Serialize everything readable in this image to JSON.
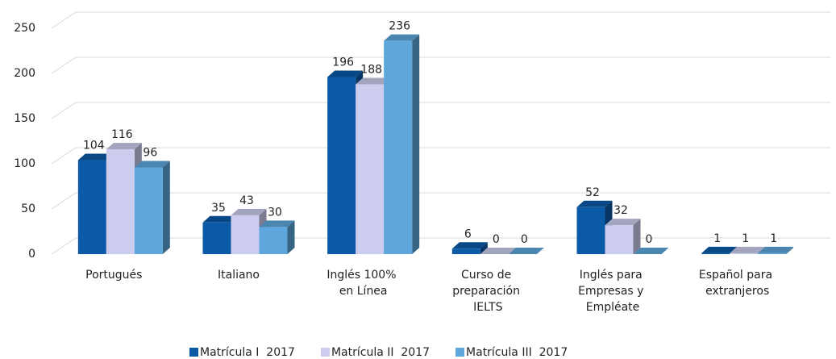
{
  "chart_data": {
    "type": "bar3d",
    "categories": [
      "Portugués",
      "Italiano",
      "Inglés 100% en Línea",
      "Curso de preparación IELTS",
      "Inglés para Empresas y Empléate",
      "Español para extranjeros"
    ],
    "series": [
      {
        "name": "Matrícula I  2017",
        "color": "#0b5aa8",
        "values": [
          104,
          35,
          196,
          6,
          52,
          1
        ]
      },
      {
        "name": "Matrícula II  2017",
        "color": "#cccdee",
        "values": [
          116,
          43,
          188,
          0,
          32,
          1
        ]
      },
      {
        "name": "Matrícula III  2017",
        "color": "#5ea7dc",
        "values": [
          96,
          30,
          236,
          0,
          0,
          1
        ]
      }
    ],
    "ylim": [
      0,
      250
    ],
    "yticks": [
      0,
      50,
      100,
      150,
      200,
      250
    ],
    "grid": true,
    "legend": "bottom"
  }
}
